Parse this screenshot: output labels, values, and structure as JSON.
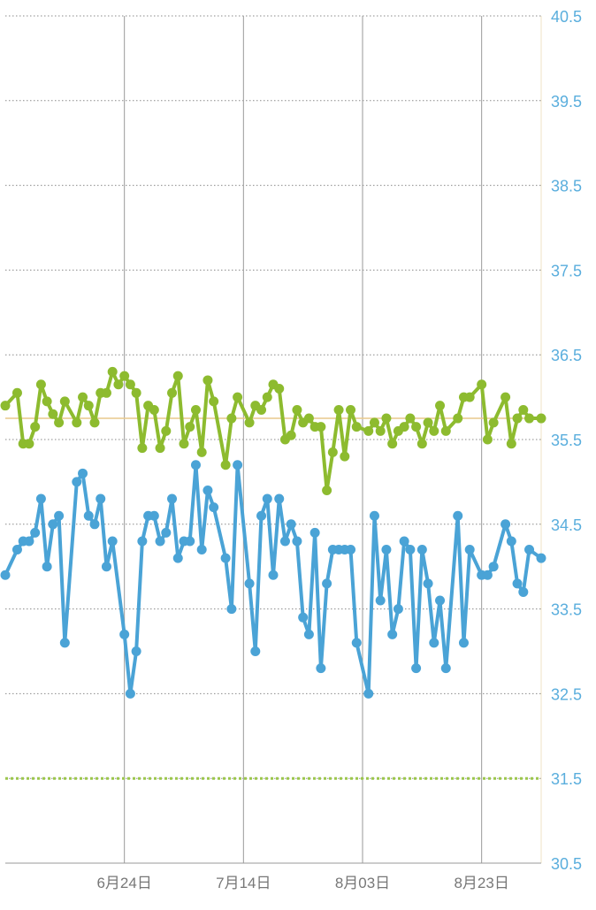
{
  "colors": {
    "green_series": "#8dbb2f",
    "blue_series": "#4aa3d6",
    "y_tick_label": "#5aaedd",
    "x_tick_label": "#777777",
    "grid_major": "#9a9a9a",
    "grid_minor_dotted": "#8a8a8a",
    "reference_line": "#e9c98c",
    "threshold_line": "#9cc64c",
    "background": "#ffffff"
  },
  "chart_data": {
    "type": "line",
    "title": "",
    "xlabel": "",
    "ylabel": "",
    "ylim": [
      30.5,
      40.5
    ],
    "y_ticks": [
      "30.5",
      "31.5",
      "32.5",
      "33.5",
      "34.5",
      "35.5",
      "36.5",
      "37.5",
      "38.5",
      "39.5",
      "40.5"
    ],
    "y_axis_position": "right",
    "x_tick_labels": [
      "6月24日",
      "7月14日",
      "8月03日",
      "8月23日"
    ],
    "x_tick_day_index": [
      20,
      40,
      60,
      80
    ],
    "x_range_days": [
      0,
      90
    ],
    "grid": {
      "horizontal": "dotted",
      "vertical": "solid"
    },
    "reference_lines": [
      {
        "y": 35.75,
        "style": "solid"
      },
      {
        "y": 31.5,
        "style": "dashed"
      }
    ],
    "series": [
      {
        "color": "#8dbb2f",
        "points": [
          [
            0,
            35.9
          ],
          [
            2,
            36.05
          ],
          [
            3,
            35.45
          ],
          [
            4,
            35.45
          ],
          [
            5,
            35.65
          ],
          [
            6,
            36.15
          ],
          [
            7,
            35.95
          ],
          [
            8,
            35.8
          ],
          [
            9,
            35.7
          ],
          [
            10,
            35.95
          ],
          [
            12,
            35.7
          ],
          [
            13,
            36.0
          ],
          [
            14,
            35.9
          ],
          [
            15,
            35.7
          ],
          [
            16,
            36.05
          ],
          [
            17,
            36.05
          ],
          [
            18,
            36.3
          ],
          [
            19,
            36.15
          ],
          [
            20,
            36.25
          ],
          [
            21,
            36.15
          ],
          [
            22,
            36.05
          ],
          [
            23,
            35.4
          ],
          [
            24,
            35.9
          ],
          [
            25,
            35.85
          ],
          [
            26,
            35.4
          ],
          [
            27,
            35.6
          ],
          [
            28,
            36.05
          ],
          [
            29,
            36.25
          ],
          [
            30,
            35.45
          ],
          [
            31,
            35.65
          ],
          [
            32,
            35.85
          ],
          [
            33,
            35.35
          ],
          [
            34,
            36.2
          ],
          [
            35,
            35.95
          ],
          [
            37,
            35.2
          ],
          [
            38,
            35.75
          ],
          [
            39,
            36.0
          ],
          [
            41,
            35.7
          ],
          [
            42,
            35.9
          ],
          [
            43,
            35.85
          ],
          [
            44,
            36.0
          ],
          [
            45,
            36.15
          ],
          [
            46,
            36.1
          ],
          [
            47,
            35.5
          ],
          [
            48,
            35.55
          ],
          [
            49,
            35.85
          ],
          [
            50,
            35.7
          ],
          [
            51,
            35.75
          ],
          [
            52,
            35.65
          ],
          [
            53,
            35.65
          ],
          [
            54,
            34.9
          ],
          [
            55,
            35.35
          ],
          [
            56,
            35.85
          ],
          [
            57,
            35.3
          ],
          [
            58,
            35.85
          ],
          [
            59,
            35.65
          ],
          [
            61,
            35.6
          ],
          [
            62,
            35.7
          ],
          [
            63,
            35.6
          ],
          [
            64,
            35.75
          ],
          [
            65,
            35.45
          ],
          [
            66,
            35.6
          ],
          [
            67,
            35.65
          ],
          [
            68,
            35.75
          ],
          [
            69,
            35.65
          ],
          [
            70,
            35.45
          ],
          [
            71,
            35.7
          ],
          [
            72,
            35.6
          ],
          [
            73,
            35.9
          ],
          [
            74,
            35.6
          ],
          [
            76,
            35.75
          ],
          [
            77,
            36.0
          ],
          [
            78,
            36.0
          ],
          [
            80,
            36.15
          ],
          [
            81,
            35.5
          ],
          [
            82,
            35.7
          ],
          [
            84,
            36.0
          ],
          [
            85,
            35.45
          ],
          [
            86,
            35.75
          ],
          [
            87,
            35.85
          ],
          [
            88,
            35.75
          ],
          [
            90,
            35.75
          ]
        ]
      },
      {
        "color": "#4aa3d6",
        "points": [
          [
            0,
            33.9
          ],
          [
            2,
            34.2
          ],
          [
            3,
            34.3
          ],
          [
            4,
            34.3
          ],
          [
            5,
            34.4
          ],
          [
            6,
            34.8
          ],
          [
            7,
            34.0
          ],
          [
            8,
            34.5
          ],
          [
            9,
            34.6
          ],
          [
            10,
            33.1
          ],
          [
            12,
            35.0
          ],
          [
            13,
            35.1
          ],
          [
            14,
            34.6
          ],
          [
            15,
            34.5
          ],
          [
            16,
            34.8
          ],
          [
            17,
            34.0
          ],
          [
            18,
            34.3
          ],
          [
            20,
            33.2
          ],
          [
            21,
            32.5
          ],
          [
            22,
            33.0
          ],
          [
            23,
            34.3
          ],
          [
            24,
            34.6
          ],
          [
            25,
            34.6
          ],
          [
            26,
            34.3
          ],
          [
            27,
            34.4
          ],
          [
            28,
            34.8
          ],
          [
            29,
            34.1
          ],
          [
            30,
            34.3
          ],
          [
            31,
            34.3
          ],
          [
            32,
            35.2
          ],
          [
            33,
            34.2
          ],
          [
            34,
            34.9
          ],
          [
            35,
            34.7
          ],
          [
            37,
            34.1
          ],
          [
            38,
            33.5
          ],
          [
            39,
            35.2
          ],
          [
            41,
            33.8
          ],
          [
            42,
            33.0
          ],
          [
            43,
            34.6
          ],
          [
            44,
            34.8
          ],
          [
            45,
            33.9
          ],
          [
            46,
            34.8
          ],
          [
            47,
            34.3
          ],
          [
            48,
            34.5
          ],
          [
            49,
            34.3
          ],
          [
            50,
            33.4
          ],
          [
            51,
            33.2
          ],
          [
            52,
            34.4
          ],
          [
            53,
            32.8
          ],
          [
            54,
            33.8
          ],
          [
            55,
            34.2
          ],
          [
            56,
            34.2
          ],
          [
            57,
            34.2
          ],
          [
            58,
            34.2
          ],
          [
            59,
            33.1
          ],
          [
            61,
            32.5
          ],
          [
            62,
            34.6
          ],
          [
            63,
            33.6
          ],
          [
            64,
            34.2
          ],
          [
            65,
            33.2
          ],
          [
            66,
            33.5
          ],
          [
            67,
            34.3
          ],
          [
            68,
            34.2
          ],
          [
            69,
            32.8
          ],
          [
            70,
            34.2
          ],
          [
            71,
            33.8
          ],
          [
            72,
            33.1
          ],
          [
            73,
            33.6
          ],
          [
            74,
            32.8
          ],
          [
            76,
            34.6
          ],
          [
            77,
            33.1
          ],
          [
            78,
            34.2
          ],
          [
            80,
            33.9
          ],
          [
            81,
            33.9
          ],
          [
            82,
            34.0
          ],
          [
            84,
            34.5
          ],
          [
            85,
            34.3
          ],
          [
            86,
            33.8
          ],
          [
            87,
            33.7
          ],
          [
            88,
            34.2
          ],
          [
            90,
            34.1
          ]
        ]
      }
    ]
  }
}
